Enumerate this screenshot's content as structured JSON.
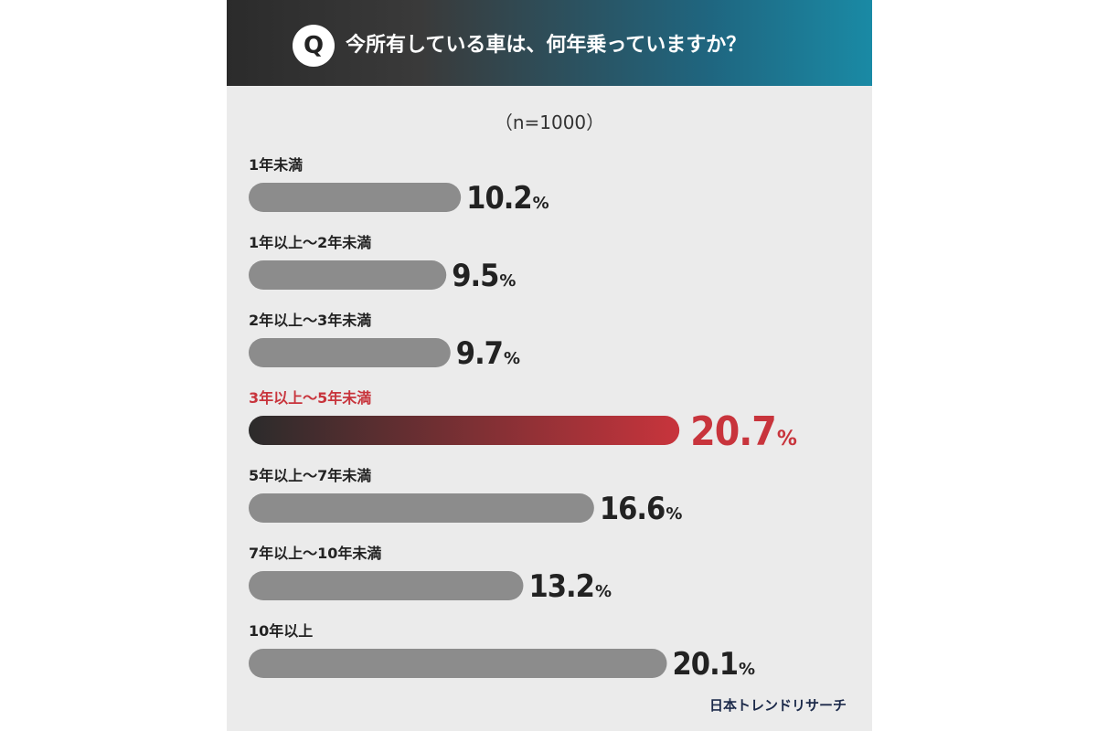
{
  "header": {
    "badge": "Q",
    "question": "今所有している車は、何年乗っていますか？"
  },
  "sample_size": "（n=1000）",
  "source": "日本トレンドリサーチ",
  "colors": {
    "bar_default": "#8c8c8c",
    "highlight": "#c8343c",
    "highlight_gradient_start": "#2b2b2b",
    "text_default": "#222222"
  },
  "chart_data": {
    "type": "bar",
    "orientation": "horizontal",
    "unit": "%",
    "categories": [
      "1年未満",
      "1年以上～2年未満",
      "2年以上～3年未満",
      "3年以上～5年未満",
      "5年以上～7年未満",
      "7年以上～10年未満",
      "10年以上"
    ],
    "values": [
      10.2,
      9.5,
      9.7,
      20.7,
      16.6,
      13.2,
      20.1
    ],
    "value_labels": [
      "10.2",
      "9.5",
      "9.7",
      "20.7",
      "16.6",
      "13.2",
      "20.1"
    ],
    "highlight_index": 3,
    "xlim": [
      0,
      21
    ]
  }
}
